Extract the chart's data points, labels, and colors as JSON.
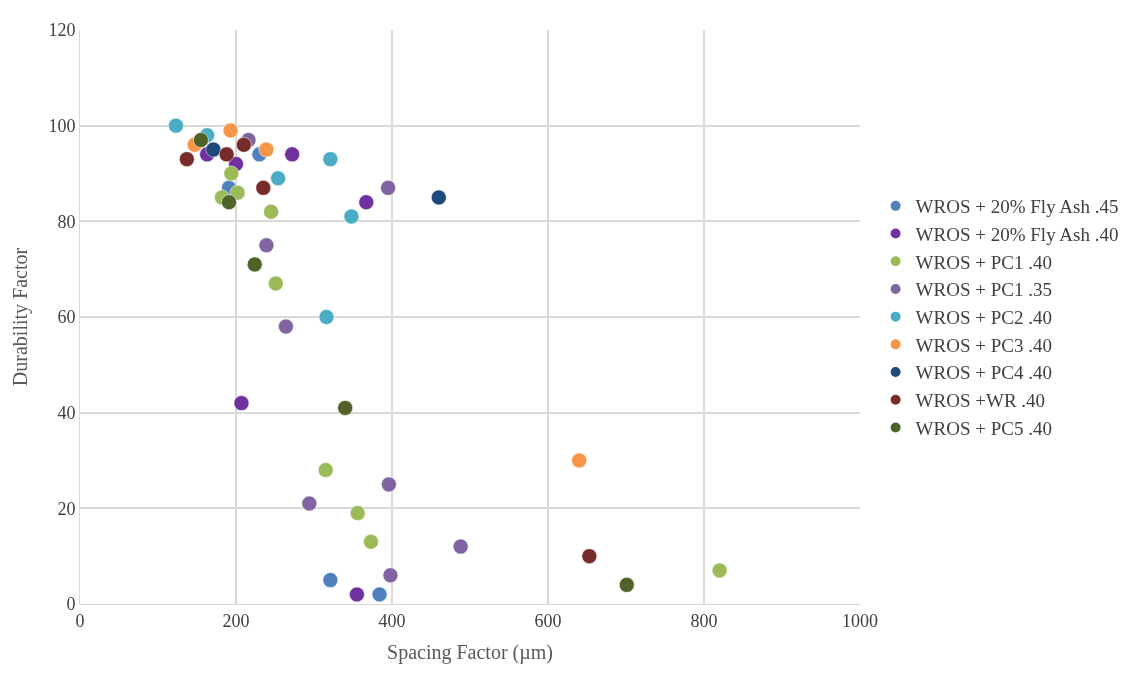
{
  "chart_data": {
    "type": "scatter",
    "xlabel": "Spacing Factor (µm)",
    "ylabel": "Durability Factor",
    "xlim": [
      0,
      1000
    ],
    "xticks": [
      0,
      200,
      400,
      600,
      800,
      1000
    ],
    "ylim": [
      0,
      120
    ],
    "yticks": [
      0,
      20,
      40,
      60,
      80,
      100,
      120
    ],
    "grid": true,
    "legend": "right",
    "marker": "circle",
    "series": [
      {
        "name": "WROS + 20% Fly Ash .45",
        "color": "#4f81bd",
        "x": [
          230,
          191,
          321,
          384
        ],
        "values": [
          94,
          87,
          5,
          2
        ]
      },
      {
        "name": "WROS + 20% Fly Ash .40",
        "color": "#7030a0",
        "x": [
          163,
          200,
          272,
          367,
          207,
          355
        ],
        "values": [
          94,
          92,
          94,
          84,
          42,
          2
        ]
      },
      {
        "name": "WROS + PC1 .40",
        "color": "#9bbb59",
        "x": [
          194,
          182,
          202,
          245,
          251,
          315,
          356,
          373,
          820
        ],
        "values": [
          90,
          85,
          86,
          82,
          67,
          28,
          19,
          13,
          7
        ]
      },
      {
        "name": "WROS + PC1 .35",
        "color": "#8064a2",
        "x": [
          216,
          395,
          239,
          264,
          294,
          396,
          488,
          398
        ],
        "values": [
          97,
          87,
          75,
          58,
          21,
          25,
          12,
          6
        ]
      },
      {
        "name": "WROS + PC2 .40",
        "color": "#4bacc6",
        "x": [
          123,
          163,
          321,
          254,
          348,
          316
        ],
        "values": [
          100,
          98,
          93,
          89,
          81,
          60
        ]
      },
      {
        "name": "WROS + PC3 .40",
        "color": "#f79646",
        "x": [
          147,
          193,
          239,
          640
        ],
        "values": [
          96,
          99,
          95,
          30
        ]
      },
      {
        "name": "WROS + PC4 .40",
        "color": "#1f497d",
        "x": [
          171,
          460
        ],
        "values": [
          95,
          85
        ]
      },
      {
        "name": "WROS +WR .40",
        "color": "#772c2a",
        "x": [
          137,
          188,
          210,
          235,
          653
        ],
        "values": [
          93,
          94,
          96,
          87,
          10
        ]
      },
      {
        "name": "WROS + PC5 .40",
        "color": "#4f6228",
        "x": [
          155,
          191,
          224,
          340,
          701
        ],
        "values": [
          97,
          84,
          71,
          41,
          4
        ]
      }
    ]
  }
}
